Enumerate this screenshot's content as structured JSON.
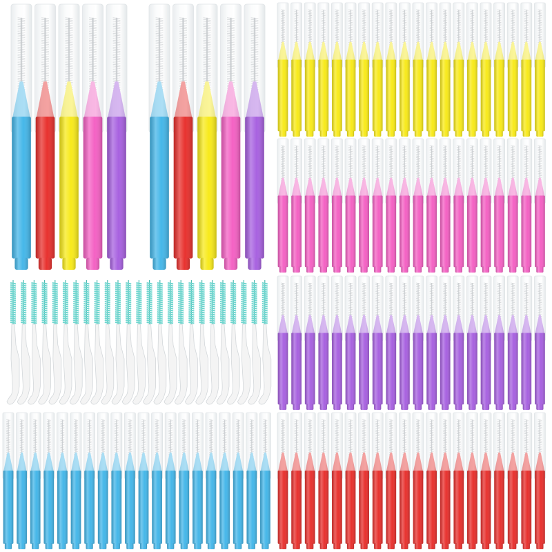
{
  "photo": {
    "background": "#ffffff",
    "cap_tint": "#eef2f4",
    "bristle_color": "#9aa0a6",
    "floss_pick_bristle": "#6fd6cf",
    "floss_pick_body": "#f4f4f4",
    "brush_colors": {
      "blue": "#46b7e9",
      "red": "#e8322f",
      "yellow": "#f8ea1c",
      "pink": "#f462c4",
      "purple": "#a862e0"
    },
    "large_brush_row": [
      "blue",
      "red",
      "yellow",
      "pink",
      "purple",
      "blue",
      "red",
      "yellow",
      "pink",
      "purple"
    ],
    "small_brush_rows": [
      {
        "name": "yellow-row",
        "color": "yellow",
        "count": 20
      },
      {
        "name": "pink-row",
        "color": "pink",
        "count": 20
      },
      {
        "name": "purple-row",
        "color": "purple",
        "count": 20
      },
      {
        "name": "red-row",
        "color": "red",
        "count": 20
      },
      {
        "name": "blue-row",
        "color": "blue",
        "count": 20
      }
    ],
    "floss_pick_count": 25
  }
}
